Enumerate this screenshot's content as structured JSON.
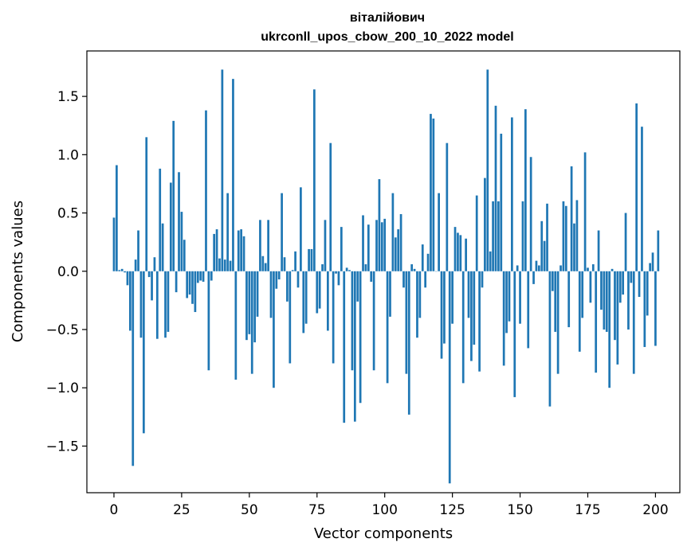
{
  "chart_data": {
    "type": "bar",
    "title": "віталійович",
    "subtitle": "ukrconll_upos_cbow_200_10_2022 model",
    "xlabel": "Vector components",
    "ylabel": "Components values",
    "bar_color": "#1f77b4",
    "xlim": [
      -10,
      209
    ],
    "ylim": [
      -1.9,
      1.89
    ],
    "xticks": [
      0,
      25,
      50,
      75,
      100,
      125,
      150,
      175,
      200
    ],
    "xtick_labels": [
      "0",
      "25",
      "50",
      "75",
      "100",
      "125",
      "150",
      "175",
      "200"
    ],
    "yticks": [
      -1.5,
      -1.0,
      -0.5,
      0.0,
      0.5,
      1.0,
      1.5
    ],
    "ytick_labels": [
      "−1.5",
      "−1.0",
      "−0.5",
      "0.0",
      "0.5",
      "1.0",
      "1.5"
    ],
    "grid": false,
    "legend": "none",
    "values": [
      0.46,
      0.91,
      0.01,
      0.02,
      -0.01,
      -0.12,
      -0.51,
      -1.67,
      0.1,
      0.35,
      -0.57,
      -1.39,
      1.15,
      -0.05,
      -0.25,
      0.12,
      -0.58,
      0.88,
      0.41,
      -0.57,
      -0.52,
      0.76,
      1.29,
      -0.18,
      0.85,
      0.51,
      0.27,
      -0.23,
      -0.2,
      -0.28,
      -0.35,
      -0.1,
      -0.08,
      -0.09,
      1.38,
      -0.85,
      -0.08,
      0.32,
      0.36,
      0.11,
      1.73,
      0.1,
      0.67,
      0.09,
      1.65,
      -0.93,
      0.35,
      0.36,
      0.3,
      -0.59,
      -0.54,
      -0.88,
      -0.61,
      -0.39,
      0.44,
      0.13,
      0.07,
      0.44,
      -0.4,
      -1.0,
      -0.15,
      -0.07,
      0.67,
      0.12,
      -0.26,
      -0.79,
      0.01,
      0.17,
      -0.14,
      0.72,
      -0.53,
      -0.45,
      0.19,
      0.19,
      1.56,
      -0.36,
      -0.32,
      0.06,
      0.44,
      -0.51,
      1.1,
      -0.79,
      -0.02,
      -0.12,
      0.38,
      -1.3,
      0.03,
      0.01,
      -0.85,
      -1.29,
      -0.26,
      -1.13,
      0.48,
      0.06,
      0.4,
      -0.09,
      -0.85,
      0.44,
      0.79,
      0.42,
      0.45,
      -0.96,
      -0.39,
      0.67,
      0.29,
      0.36,
      0.49,
      -0.14,
      -0.88,
      -1.23,
      0.06,
      0.02,
      -0.57,
      -0.4,
      0.23,
      -0.14,
      0.15,
      1.35,
      1.31,
      0.0,
      0.67,
      -0.75,
      -0.62,
      1.1,
      -1.82,
      -0.45,
      0.38,
      0.33,
      0.31,
      -0.96,
      0.28,
      -0.4,
      -0.77,
      -0.63,
      0.65,
      -0.86,
      -0.14,
      0.8,
      1.73,
      0.17,
      0.6,
      1.42,
      0.6,
      1.18,
      -0.81,
      -0.53,
      -0.43,
      1.32,
      -1.08,
      0.05,
      -0.45,
      0.6,
      1.39,
      -0.66,
      0.98,
      -0.11,
      0.09,
      0.05,
      0.43,
      0.26,
      0.58,
      -1.16,
      -0.17,
      -0.52,
      -0.88,
      0.05,
      0.6,
      0.56,
      -0.48,
      0.9,
      0.41,
      0.61,
      -0.69,
      -0.4,
      1.02,
      0.03,
      -0.27,
      0.06,
      -0.87,
      0.35,
      -0.33,
      -0.5,
      -0.52,
      -1.0,
      0.02,
      -0.59,
      -0.8,
      -0.27,
      -0.2,
      0.5,
      -0.5,
      -0.1,
      -0.88,
      1.44,
      -0.22,
      1.24,
      -0.65,
      -0.38,
      0.07,
      0.16,
      -0.64,
      0.35
    ]
  }
}
